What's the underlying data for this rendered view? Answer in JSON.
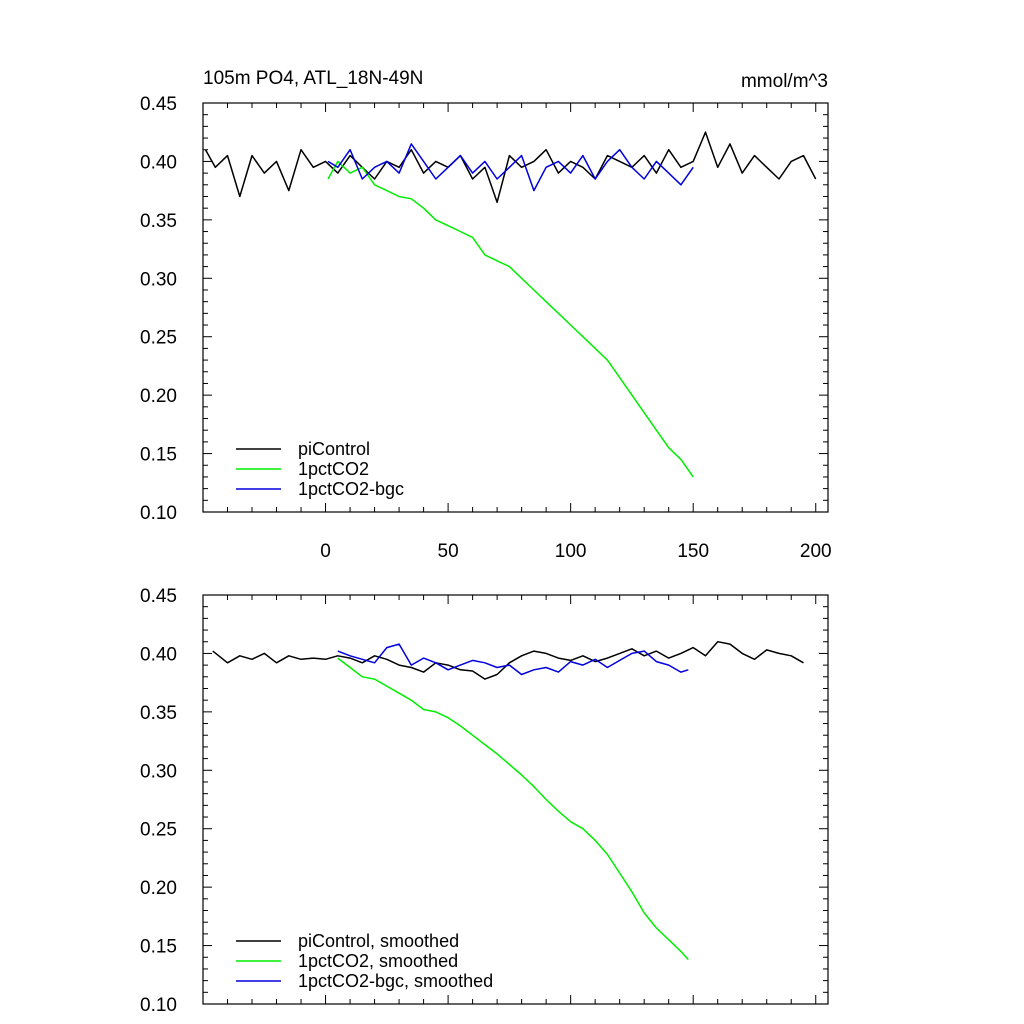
{
  "title_left": "105m PO4, ATL_18N-49N",
  "title_right": "mmol/m^3",
  "colors": {
    "piControl": "#000000",
    "1pctCO2": "#00ee00",
    "1pctCO2-bgc": "#0000dd"
  },
  "chart_data": [
    {
      "type": "line",
      "title": "105m PO4, ATL_18N-49N",
      "units": "mmol/m^3",
      "xlim": [
        -50,
        205
      ],
      "ylim": [
        0.1,
        0.45
      ],
      "x_ticks": [
        0,
        50,
        100,
        150,
        200
      ],
      "x_tick_labels": [
        "0",
        "50",
        "100",
        "150",
        "200"
      ],
      "y_ticks": [
        0.1,
        0.15,
        0.2,
        0.25,
        0.3,
        0.35,
        0.4,
        0.45
      ],
      "y_tick_labels": [
        "0.10",
        "0.15",
        "0.20",
        "0.25",
        "0.30",
        "0.35",
        "0.40",
        "0.45"
      ],
      "grid": false,
      "legend_position": "bottom-left",
      "series": [
        {
          "name": "piControl",
          "color": "#000000",
          "x": [
            -49,
            -45,
            -40,
            -35,
            -30,
            -25,
            -20,
            -15,
            -10,
            -5,
            0,
            5,
            10,
            15,
            20,
            25,
            30,
            35,
            40,
            45,
            50,
            55,
            60,
            65,
            70,
            75,
            80,
            85,
            90,
            95,
            100,
            105,
            110,
            115,
            120,
            125,
            130,
            135,
            140,
            145,
            150,
            155,
            160,
            165,
            170,
            175,
            180,
            185,
            190,
            195,
            200
          ],
          "y": [
            0.41,
            0.395,
            0.405,
            0.37,
            0.405,
            0.39,
            0.4,
            0.375,
            0.41,
            0.395,
            0.4,
            0.39,
            0.405,
            0.395,
            0.385,
            0.4,
            0.395,
            0.41,
            0.39,
            0.4,
            0.395,
            0.405,
            0.385,
            0.395,
            0.365,
            0.405,
            0.395,
            0.4,
            0.41,
            0.39,
            0.4,
            0.395,
            0.385,
            0.405,
            0.4,
            0.395,
            0.405,
            0.39,
            0.41,
            0.395,
            0.4,
            0.425,
            0.395,
            0.415,
            0.39,
            0.405,
            0.395,
            0.385,
            0.4,
            0.405,
            0.385
          ]
        },
        {
          "name": "1pctCO2",
          "color": "#00ee00",
          "x": [
            1,
            5,
            10,
            15,
            20,
            25,
            30,
            35,
            40,
            45,
            50,
            55,
            60,
            65,
            70,
            75,
            80,
            85,
            90,
            95,
            100,
            105,
            110,
            115,
            120,
            125,
            130,
            135,
            140,
            145,
            150
          ],
          "y": [
            0.385,
            0.4,
            0.39,
            0.395,
            0.38,
            0.375,
            0.37,
            0.368,
            0.36,
            0.35,
            0.345,
            0.34,
            0.335,
            0.32,
            0.315,
            0.31,
            0.3,
            0.29,
            0.28,
            0.27,
            0.26,
            0.25,
            0.24,
            0.23,
            0.215,
            0.2,
            0.185,
            0.17,
            0.155,
            0.145,
            0.13
          ]
        },
        {
          "name": "1pctCO2-bgc",
          "color": "#0000dd",
          "x": [
            1,
            5,
            10,
            15,
            20,
            25,
            30,
            35,
            40,
            45,
            50,
            55,
            60,
            65,
            70,
            75,
            80,
            85,
            90,
            95,
            100,
            105,
            110,
            115,
            120,
            125,
            130,
            135,
            140,
            145,
            150
          ],
          "y": [
            0.4,
            0.395,
            0.41,
            0.385,
            0.395,
            0.4,
            0.39,
            0.415,
            0.4,
            0.385,
            0.395,
            0.405,
            0.39,
            0.4,
            0.385,
            0.395,
            0.405,
            0.375,
            0.395,
            0.4,
            0.39,
            0.405,
            0.385,
            0.4,
            0.41,
            0.395,
            0.385,
            0.4,
            0.39,
            0.38,
            0.395
          ]
        }
      ]
    },
    {
      "type": "line",
      "xlim": [
        -50,
        205
      ],
      "ylim": [
        0.1,
        0.45
      ],
      "x_ticks": [
        0,
        50,
        100,
        150,
        200
      ],
      "y_ticks": [
        0.1,
        0.15,
        0.2,
        0.25,
        0.3,
        0.35,
        0.4,
        0.45
      ],
      "y_tick_labels": [
        "0.10",
        "0.15",
        "0.20",
        "0.25",
        "0.30",
        "0.35",
        "0.40",
        "0.45"
      ],
      "grid": false,
      "legend_position": "bottom-left",
      "series": [
        {
          "name": "piControl, smoothed",
          "color": "#000000",
          "x": [
            -46,
            -40,
            -35,
            -30,
            -25,
            -20,
            -15,
            -10,
            -5,
            0,
            5,
            10,
            15,
            20,
            25,
            30,
            35,
            40,
            45,
            50,
            55,
            60,
            65,
            70,
            75,
            80,
            85,
            90,
            95,
            100,
            105,
            110,
            115,
            120,
            125,
            130,
            135,
            140,
            145,
            150,
            155,
            160,
            165,
            170,
            175,
            180,
            185,
            190,
            195
          ],
          "y": [
            0.402,
            0.392,
            0.398,
            0.395,
            0.4,
            0.392,
            0.398,
            0.395,
            0.396,
            0.395,
            0.398,
            0.396,
            0.392,
            0.398,
            0.395,
            0.39,
            0.388,
            0.384,
            0.392,
            0.39,
            0.386,
            0.385,
            0.378,
            0.382,
            0.392,
            0.398,
            0.402,
            0.4,
            0.396,
            0.394,
            0.398,
            0.393,
            0.396,
            0.4,
            0.404,
            0.398,
            0.402,
            0.396,
            0.4,
            0.405,
            0.398,
            0.41,
            0.408,
            0.4,
            0.395,
            0.403,
            0.4,
            0.398,
            0.392
          ]
        },
        {
          "name": "1pctCO2, smoothed",
          "color": "#00ee00",
          "x": [
            5,
            10,
            15,
            20,
            25,
            30,
            35,
            40,
            45,
            50,
            55,
            60,
            65,
            70,
            75,
            80,
            85,
            90,
            95,
            100,
            105,
            110,
            115,
            120,
            125,
            130,
            135,
            140,
            145,
            148
          ],
          "y": [
            0.396,
            0.388,
            0.38,
            0.378,
            0.372,
            0.366,
            0.36,
            0.352,
            0.35,
            0.345,
            0.338,
            0.33,
            0.322,
            0.314,
            0.305,
            0.296,
            0.286,
            0.275,
            0.265,
            0.256,
            0.25,
            0.24,
            0.228,
            0.212,
            0.196,
            0.178,
            0.165,
            0.155,
            0.145,
            0.138
          ]
        },
        {
          "name": "1pctCO2-bgc, smoothed",
          "color": "#0000dd",
          "x": [
            5,
            10,
            15,
            20,
            25,
            30,
            35,
            40,
            45,
            50,
            55,
            60,
            65,
            70,
            75,
            80,
            85,
            90,
            95,
            100,
            105,
            110,
            115,
            120,
            125,
            130,
            135,
            140,
            145,
            148
          ],
          "y": [
            0.402,
            0.398,
            0.395,
            0.392,
            0.405,
            0.408,
            0.39,
            0.396,
            0.392,
            0.386,
            0.39,
            0.394,
            0.392,
            0.388,
            0.39,
            0.382,
            0.386,
            0.388,
            0.384,
            0.393,
            0.39,
            0.395,
            0.388,
            0.394,
            0.4,
            0.402,
            0.393,
            0.39,
            0.384,
            0.386
          ]
        }
      ]
    }
  ]
}
